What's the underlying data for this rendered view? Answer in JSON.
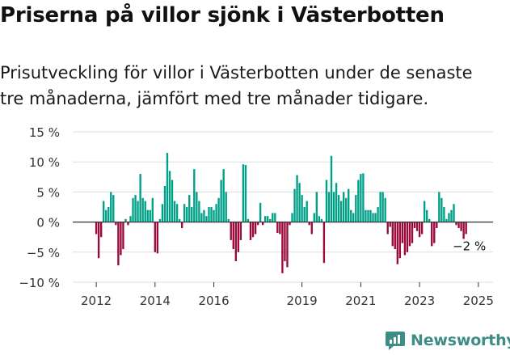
{
  "title": "Priserna på villor sjönk i Västerbotten",
  "subtitle": "Prisutveckling för villor i Västerbotten under de senaste tre månaderna, jämfört med tre månader tidigare.",
  "brand": {
    "name": "Newsworthy",
    "color": "#3d8c86"
  },
  "colors": {
    "positive": "#00a088",
    "negative": "#9a0a3c",
    "grid": "#dddddd",
    "axis": "#333333",
    "text": "#333333"
  },
  "chart_data": {
    "type": "bar",
    "xlabel": "",
    "ylabel": "",
    "ylim": [
      -10,
      15
    ],
    "yticks": [
      -10,
      -5,
      0,
      5,
      10,
      15
    ],
    "ytick_labels": [
      "−10 %",
      "−5 %",
      "0 %",
      "5 %",
      "10 %",
      "15 %"
    ],
    "xlim": [
      2011.2,
      2025.5
    ],
    "xticks": [
      2012,
      2014,
      2016,
      2019,
      2021,
      2023,
      2025
    ],
    "xtick_labels": [
      "2012",
      "2014",
      "2016",
      "2019",
      "2021",
      "2023",
      "2025"
    ],
    "grid": true,
    "legend": "none",
    "end_label": "−2 %",
    "start_year": 2012.0,
    "step_months": 1,
    "values": [
      -2,
      -6,
      -2.5,
      3.5,
      2,
      2.5,
      5,
      4.5,
      -0.5,
      -7.2,
      -5.5,
      -4.5,
      0.5,
      -0.5,
      1,
      4,
      4.5,
      3.5,
      8,
      4,
      3.5,
      2,
      2,
      4,
      -5,
      -5.2,
      0.5,
      3,
      6,
      11.5,
      8.5,
      7,
      3.5,
      3,
      0.5,
      -1,
      3,
      2.5,
      4.5,
      2.5,
      8.8,
      5,
      3.5,
      1.5,
      2,
      1,
      2.5,
      2.5,
      2,
      3,
      4,
      7,
      8.8,
      5,
      0.5,
      -3,
      -4.5,
      -6.5,
      -5,
      -3,
      9.6,
      9.5,
      0.5,
      -3,
      -2.5,
      -2,
      -0.5,
      3.2,
      -0.5,
      1,
      1,
      0.5,
      1.5,
      1.5,
      -1.8,
      -2,
      -8.5,
      -6.5,
      -7.5,
      -0.5,
      1.5,
      5.5,
      7.8,
      6.5,
      4.5,
      2.5,
      3.5,
      -0.5,
      -2,
      1.5,
      5,
      1,
      0.5,
      -6.8,
      7,
      5,
      11,
      5,
      6.5,
      4.5,
      3.5,
      5,
      4,
      5.5,
      2,
      1.5,
      4.5,
      7,
      8,
      8.1,
      2,
      2,
      2,
      1.5,
      1.5,
      2.5,
      5,
      5,
      4,
      -2,
      -0.8,
      -4,
      -4.5,
      -7,
      -6,
      -3.5,
      -5.5,
      -5,
      -4,
      -3.5,
      -1,
      -1.5,
      -2.5,
      -2,
      3.5,
      2,
      0.5,
      -4,
      -3.5,
      -1,
      5,
      4,
      2.5,
      0.5,
      1.5,
      2,
      3,
      -0.5,
      -1,
      -1.5,
      -2.8,
      -2
    ]
  }
}
